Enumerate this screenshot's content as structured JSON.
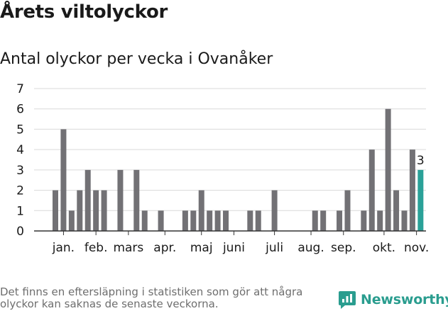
{
  "header": {
    "title": "Årets viltolyckor",
    "subtitle": "Antal olyckor per vecka i Ovanåker"
  },
  "footnote": "Det finns en eftersläpning i statistiken som gör att några olyckor kan saknas de senaste veckorna.",
  "brand": {
    "name": "Newsworthy"
  },
  "colors": {
    "bar": "#727175",
    "highlight": "#2aa198",
    "grid": "#d9d9d9",
    "axis": "#333333"
  },
  "chart_data": {
    "type": "bar",
    "title": "Antal olyckor per vecka i Ovanåker",
    "xlabel": "",
    "ylabel": "",
    "ylim": [
      0,
      7
    ],
    "yticks": [
      0,
      1,
      2,
      3,
      4,
      5,
      6,
      7
    ],
    "weeks": [
      1,
      2,
      3,
      4,
      5,
      6,
      7,
      8,
      9,
      10,
      11,
      12,
      13,
      14,
      15,
      16,
      17,
      18,
      19,
      20,
      21,
      22,
      23,
      24,
      25,
      26,
      27,
      28,
      29,
      30,
      31,
      32,
      33,
      34,
      35,
      36,
      37,
      38,
      39,
      40,
      41,
      42,
      43,
      44,
      45,
      46
    ],
    "values": [
      2,
      5,
      1,
      2,
      3,
      2,
      2,
      0,
      3,
      0,
      3,
      1,
      0,
      1,
      0,
      0,
      1,
      1,
      2,
      1,
      1,
      1,
      0,
      0,
      1,
      1,
      0,
      2,
      0,
      0,
      0,
      0,
      1,
      1,
      0,
      1,
      2,
      0,
      1,
      4,
      1,
      6,
      2,
      1,
      4,
      3
    ],
    "month_labels": [
      {
        "label": "jan.",
        "week": 2
      },
      {
        "label": "feb.",
        "week": 6
      },
      {
        "label": "mars",
        "week": 10
      },
      {
        "label": "apr.",
        "week": 14.5
      },
      {
        "label": "maj",
        "week": 19
      },
      {
        "label": "juni",
        "week": 23
      },
      {
        "label": "juli",
        "week": 28
      },
      {
        "label": "aug.",
        "week": 32.5
      },
      {
        "label": "sep.",
        "week": 36.5
      },
      {
        "label": "okt.",
        "week": 41.5
      },
      {
        "label": "nov.",
        "week": 45.5
      }
    ],
    "highlight": {
      "week": 46,
      "value": 3,
      "label": "3"
    }
  }
}
